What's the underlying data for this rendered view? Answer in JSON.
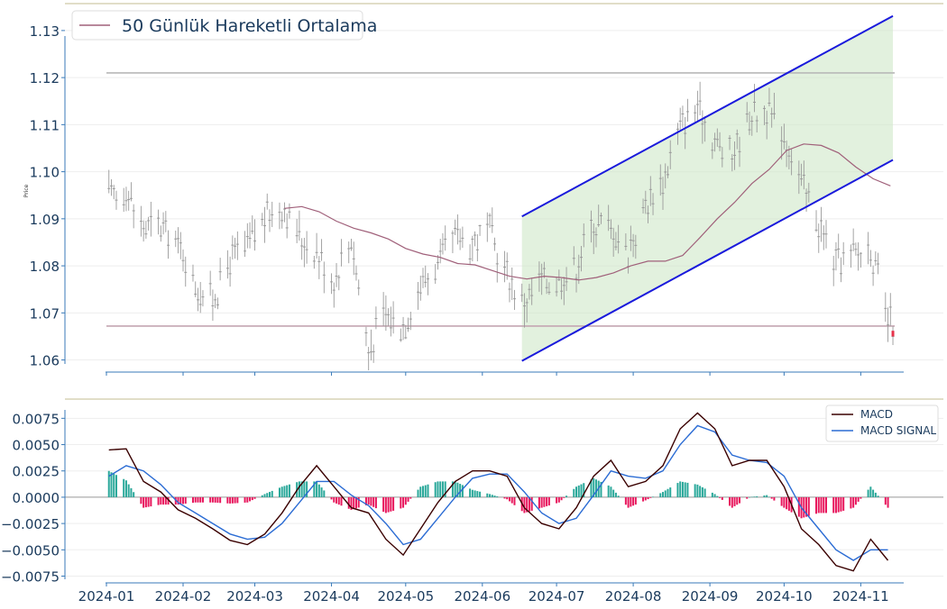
{
  "chart_data": [
    {
      "type": "candlestick",
      "title": "",
      "ylabel": "Price",
      "ylim": [
        1.058,
        1.134
      ],
      "yticks": [
        "1.06",
        "1.07",
        "1.08",
        "1.09",
        "1.10",
        "1.11",
        "1.12",
        "1.13"
      ],
      "legend": {
        "placement": "top-left",
        "entries": [
          "50 Günlük Hareketli Ortalama"
        ]
      },
      "colors": {
        "candle": "#9a9a9a",
        "ma": "#a0607a",
        "channel": "#1a1adc",
        "channel_fill": "#c9e6c0",
        "level": "#b0b0b0",
        "last_candle": "#e8324a"
      },
      "horizontal_levels": [
        1.121,
        1.0672
      ],
      "channel": {
        "start_date": "2024-06-17",
        "end_date": "2024-11-14",
        "upper": [
          1.0905,
          1.1331
        ],
        "lower": [
          1.0598,
          1.1025
        ]
      },
      "moving_average": [
        [
          "2024-03-13",
          1.0922
        ],
        [
          "2024-03-20",
          1.0926
        ],
        [
          "2024-03-27",
          1.0915
        ],
        [
          "2024-04-03",
          1.0895
        ],
        [
          "2024-04-10",
          1.088
        ],
        [
          "2024-04-17",
          1.087
        ],
        [
          "2024-04-24",
          1.0857
        ],
        [
          "2024-05-01",
          1.0837
        ],
        [
          "2024-05-08",
          1.0825
        ],
        [
          "2024-05-15",
          1.0818
        ],
        [
          "2024-05-22",
          1.0805
        ],
        [
          "2024-05-29",
          1.0802
        ],
        [
          "2024-06-05",
          1.079
        ],
        [
          "2024-06-12",
          1.0778
        ],
        [
          "2024-06-19",
          1.0772
        ],
        [
          "2024-06-26",
          1.0778
        ],
        [
          "2024-07-03",
          1.0775
        ],
        [
          "2024-07-10",
          1.077
        ],
        [
          "2024-07-17",
          1.0775
        ],
        [
          "2024-07-24",
          1.0785
        ],
        [
          "2024-07-31",
          1.08
        ],
        [
          "2024-08-07",
          1.081
        ],
        [
          "2024-08-14",
          1.081
        ],
        [
          "2024-08-21",
          1.0822
        ],
        [
          "2024-08-28",
          1.086
        ],
        [
          "2024-09-04",
          1.09
        ],
        [
          "2024-09-11",
          1.0935
        ],
        [
          "2024-09-18",
          1.0975
        ],
        [
          "2024-09-25",
          1.1005
        ],
        [
          "2024-10-02",
          1.1045
        ],
        [
          "2024-10-09",
          1.1059
        ],
        [
          "2024-10-16",
          1.1056
        ],
        [
          "2024-10-23",
          1.104
        ],
        [
          "2024-10-30",
          1.101
        ],
        [
          "2024-11-06",
          1.0985
        ],
        [
          "2024-11-13",
          1.097
        ]
      ],
      "closes": [
        [
          "2024-01-02",
          1.0943
        ],
        [
          "2024-01-09",
          1.096
        ],
        [
          "2024-01-16",
          1.088
        ],
        [
          "2024-01-23",
          1.088
        ],
        [
          "2024-01-30",
          1.0845
        ],
        [
          "2024-02-06",
          1.076
        ],
        [
          "2024-02-13",
          1.0726
        ],
        [
          "2024-02-20",
          1.081
        ],
        [
          "2024-02-27",
          1.084
        ],
        [
          "2024-03-05",
          1.09
        ],
        [
          "2024-03-12",
          1.093
        ],
        [
          "2024-03-19",
          1.086
        ],
        [
          "2024-03-26",
          1.083
        ],
        [
          "2024-04-02",
          1.077
        ],
        [
          "2024-04-09",
          1.086
        ],
        [
          "2024-04-16",
          1.062
        ],
        [
          "2024-04-23",
          1.07
        ],
        [
          "2024-04-30",
          1.067
        ],
        [
          "2024-05-07",
          1.076
        ],
        [
          "2024-05-14",
          1.08
        ],
        [
          "2024-05-21",
          1.086
        ],
        [
          "2024-05-28",
          1.085
        ],
        [
          "2024-06-04",
          1.087
        ],
        [
          "2024-06-11",
          1.078
        ],
        [
          "2024-06-18",
          1.072
        ],
        [
          "2024-06-25",
          1.077
        ],
        [
          "2024-07-02",
          1.077
        ],
        [
          "2024-07-09",
          1.08
        ],
        [
          "2024-07-16",
          1.089
        ],
        [
          "2024-07-23",
          1.088
        ],
        [
          "2024-07-30",
          1.083
        ],
        [
          "2024-08-06",
          1.093
        ],
        [
          "2024-08-13",
          1.098
        ],
        [
          "2024-08-20",
          1.11
        ],
        [
          "2024-08-27",
          1.114
        ],
        [
          "2024-09-03",
          1.106
        ],
        [
          "2024-09-10",
          1.103
        ],
        [
          "2024-09-17",
          1.112
        ],
        [
          "2024-09-24",
          1.113
        ],
        [
          "2024-10-01",
          1.108
        ],
        [
          "2024-10-08",
          1.097
        ],
        [
          "2024-10-15",
          1.089
        ],
        [
          "2024-10-22",
          1.08
        ],
        [
          "2024-10-29",
          1.082
        ],
        [
          "2024-11-05",
          1.084
        ],
        [
          "2024-11-12",
          1.068
        ]
      ]
    },
    {
      "type": "line",
      "title": "",
      "ylim": [
        -0.0078,
        0.0083
      ],
      "yticks": [
        "0.0075",
        "0.0050",
        "0.0025",
        "0.0000",
        "−0.0025",
        "−0.0050",
        "−0.0075"
      ],
      "xticks": [
        "2024-01",
        "2024-02",
        "2024-03",
        "2024-04",
        "2024-05",
        "2024-06",
        "2024-07",
        "2024-08",
        "2024-09",
        "2024-10",
        "2024-11"
      ],
      "legend": {
        "placement": "top-right",
        "entries": [
          "MACD",
          "MACD SIGNAL"
        ]
      },
      "colors": {
        "macd": "#3a0000",
        "signal": "#2b6cd4",
        "hist_pos": "#2aa89a",
        "hist_neg": "#e8175d"
      },
      "series": [
        {
          "name": "MACD",
          "points": [
            [
              "2024-01-02",
              0.0045
            ],
            [
              "2024-01-09",
              0.0046
            ],
            [
              "2024-01-16",
              0.0015
            ],
            [
              "2024-01-23",
              0.0005
            ],
            [
              "2024-01-30",
              -0.0012
            ],
            [
              "2024-02-06",
              -0.002
            ],
            [
              "2024-02-13",
              -0.003
            ],
            [
              "2024-02-20",
              -0.0041
            ],
            [
              "2024-02-27",
              -0.0045
            ],
            [
              "2024-03-05",
              -0.0035
            ],
            [
              "2024-03-12",
              -0.0015
            ],
            [
              "2024-03-19",
              0.001
            ],
            [
              "2024-03-26",
              0.003
            ],
            [
              "2024-04-02",
              0.001
            ],
            [
              "2024-04-09",
              -0.001
            ],
            [
              "2024-04-16",
              -0.0015
            ],
            [
              "2024-04-23",
              -0.004
            ],
            [
              "2024-04-30",
              -0.0055
            ],
            [
              "2024-05-07",
              -0.003
            ],
            [
              "2024-05-14",
              -0.0005
            ],
            [
              "2024-05-21",
              0.0015
            ],
            [
              "2024-05-28",
              0.0025
            ],
            [
              "2024-06-04",
              0.0025
            ],
            [
              "2024-06-11",
              0.002
            ],
            [
              "2024-06-18",
              -0.001
            ],
            [
              "2024-06-25",
              -0.0025
            ],
            [
              "2024-07-02",
              -0.003
            ],
            [
              "2024-07-09",
              -0.001
            ],
            [
              "2024-07-16",
              0.002
            ],
            [
              "2024-07-23",
              0.0035
            ],
            [
              "2024-07-30",
              0.001
            ],
            [
              "2024-08-06",
              0.0015
            ],
            [
              "2024-08-13",
              0.003
            ],
            [
              "2024-08-20",
              0.0065
            ],
            [
              "2024-08-27",
              0.008
            ],
            [
              "2024-09-03",
              0.0065
            ],
            [
              "2024-09-10",
              0.003
            ],
            [
              "2024-09-17",
              0.0035
            ],
            [
              "2024-09-24",
              0.0035
            ],
            [
              "2024-10-01",
              0.001
            ],
            [
              "2024-10-08",
              -0.003
            ],
            [
              "2024-10-15",
              -0.0045
            ],
            [
              "2024-10-22",
              -0.0065
            ],
            [
              "2024-10-29",
              -0.007
            ],
            [
              "2024-11-05",
              -0.004
            ],
            [
              "2024-11-12",
              -0.006
            ]
          ]
        },
        {
          "name": "MACD SIGNAL",
          "points": [
            [
              "2024-01-02",
              0.002
            ],
            [
              "2024-01-09",
              0.003
            ],
            [
              "2024-01-16",
              0.0025
            ],
            [
              "2024-01-23",
              0.0012
            ],
            [
              "2024-01-30",
              -0.0005
            ],
            [
              "2024-02-06",
              -0.0015
            ],
            [
              "2024-02-13",
              -0.0025
            ],
            [
              "2024-02-20",
              -0.0035
            ],
            [
              "2024-02-27",
              -0.004
            ],
            [
              "2024-03-05",
              -0.0038
            ],
            [
              "2024-03-12",
              -0.0025
            ],
            [
              "2024-03-19",
              -0.0005
            ],
            [
              "2024-03-26",
              0.0015
            ],
            [
              "2024-04-02",
              0.0015
            ],
            [
              "2024-04-09",
              0.0002
            ],
            [
              "2024-04-16",
              -0.0008
            ],
            [
              "2024-04-23",
              -0.0025
            ],
            [
              "2024-04-30",
              -0.0045
            ],
            [
              "2024-05-07",
              -0.004
            ],
            [
              "2024-05-14",
              -0.002
            ],
            [
              "2024-05-21",
              0.0
            ],
            [
              "2024-05-28",
              0.0018
            ],
            [
              "2024-06-04",
              0.0022
            ],
            [
              "2024-06-11",
              0.0022
            ],
            [
              "2024-06-18",
              0.0005
            ],
            [
              "2024-06-25",
              -0.0015
            ],
            [
              "2024-07-02",
              -0.0025
            ],
            [
              "2024-07-09",
              -0.002
            ],
            [
              "2024-07-16",
              0.0002
            ],
            [
              "2024-07-23",
              0.0025
            ],
            [
              "2024-07-30",
              0.002
            ],
            [
              "2024-08-06",
              0.0018
            ],
            [
              "2024-08-13",
              0.0025
            ],
            [
              "2024-08-20",
              0.005
            ],
            [
              "2024-08-27",
              0.0068
            ],
            [
              "2024-09-03",
              0.0062
            ],
            [
              "2024-09-10",
              0.004
            ],
            [
              "2024-09-17",
              0.0035
            ],
            [
              "2024-09-24",
              0.0033
            ],
            [
              "2024-10-01",
              0.002
            ],
            [
              "2024-10-08",
              -0.001
            ],
            [
              "2024-10-15",
              -0.003
            ],
            [
              "2024-10-22",
              -0.005
            ],
            [
              "2024-10-29",
              -0.006
            ],
            [
              "2024-11-05",
              -0.005
            ],
            [
              "2024-11-12",
              -0.005
            ]
          ]
        }
      ]
    }
  ]
}
